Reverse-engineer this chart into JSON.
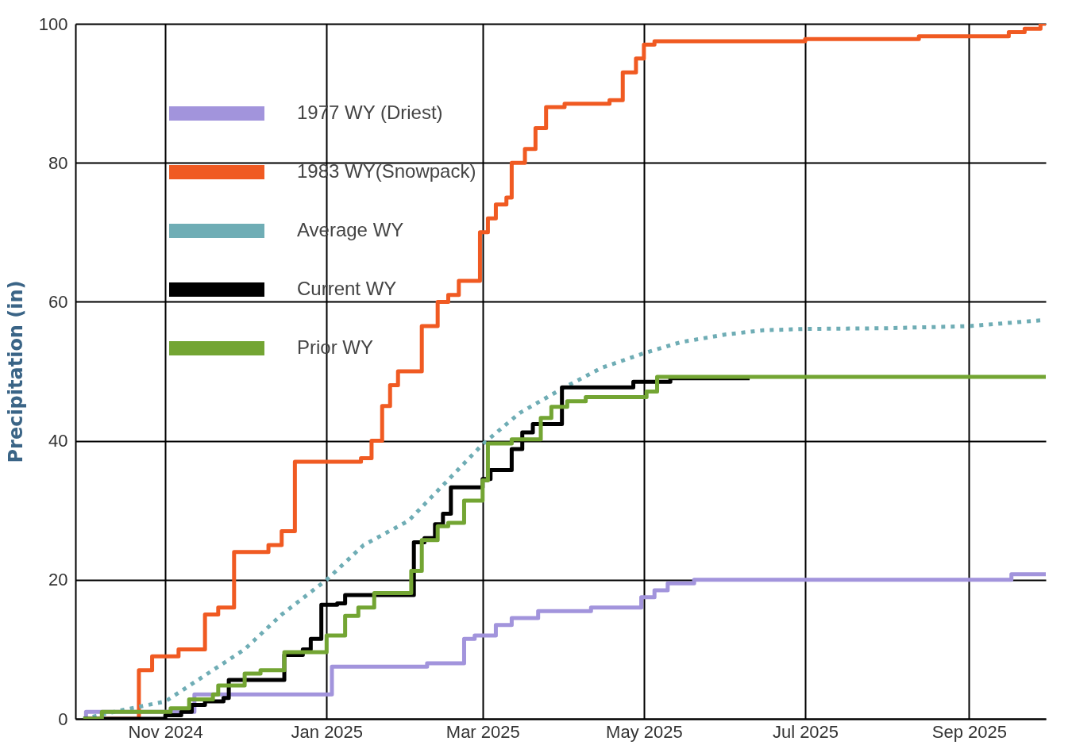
{
  "chart_data": {
    "type": "step",
    "ylabel": "Precipitation (in)",
    "xlim": [
      "2024-09-28",
      "2025-09-30"
    ],
    "ylim": [
      0,
      100
    ],
    "yticks": [
      0,
      20,
      40,
      60,
      80,
      100
    ],
    "xticks": [
      {
        "value": "2024-11",
        "label": "Nov 2024"
      },
      {
        "value": "2025-01",
        "label": "Jan 2025"
      },
      {
        "value": "2025-03",
        "label": "Mar 2025"
      },
      {
        "value": "2025-05",
        "label": "May 2025"
      },
      {
        "value": "2025-07",
        "label": "Jul 2025"
      },
      {
        "value": "2025-09",
        "label": "Sep 2025"
      }
    ],
    "grid": true,
    "legend": "top left",
    "series": [
      {
        "name": "1977 WY (Driest)",
        "color": "#a294dc",
        "x": [
          "2024-10-01",
          "2024-10-02",
          "2024-11-12",
          "2025-01-03",
          "2025-02-08",
          "2025-02-22",
          "2025-02-26",
          "2025-03-06",
          "2025-03-12",
          "2025-03-22",
          "2025-04-11",
          "2025-04-30",
          "2025-05-05",
          "2025-05-10",
          "2025-05-20",
          "2025-09-17",
          "2025-09-30"
        ],
        "values": [
          0,
          1,
          3.5,
          7.5,
          8,
          11.5,
          12,
          13.5,
          14.5,
          15.5,
          16,
          17.5,
          18.5,
          19.5,
          20,
          20.8,
          20.8
        ]
      },
      {
        "name": "1983 WY(Snowpack)",
        "color": "#f05a22",
        "x": [
          "2024-10-01",
          "2024-10-22",
          "2024-10-27",
          "2024-11-06",
          "2024-11-16",
          "2024-11-21",
          "2024-11-27",
          "2024-12-10",
          "2024-12-15",
          "2024-12-20",
          "2025-01-14",
          "2025-01-18",
          "2025-01-22",
          "2025-01-25",
          "2025-01-28",
          "2025-02-06",
          "2025-02-12",
          "2025-02-16",
          "2025-02-20",
          "2025-02-28",
          "2025-03-03",
          "2025-03-06",
          "2025-03-10",
          "2025-03-12",
          "2025-03-17",
          "2025-03-21",
          "2025-03-25",
          "2025-04-01",
          "2025-04-18",
          "2025-04-23",
          "2025-04-28",
          "2025-05-01",
          "2025-05-05",
          "2025-07-01",
          "2025-08-13",
          "2025-09-16",
          "2025-09-22",
          "2025-09-28",
          "2025-09-30"
        ],
        "values": [
          0,
          7,
          9,
          10,
          15,
          16,
          24,
          25,
          27,
          37,
          37.5,
          40,
          45,
          48,
          50,
          56.5,
          60,
          61,
          63,
          70,
          72,
          74,
          75,
          80,
          82,
          85,
          88,
          88.5,
          89,
          93,
          95,
          97,
          97.5,
          97.8,
          98.2,
          98.8,
          99.3,
          100,
          100
        ]
      },
      {
        "name": "Average WY",
        "color": "#6fadb5",
        "type": "line",
        "line_style": "dotted",
        "x": [
          "2024-10-01",
          "2024-10-15",
          "2024-11-01",
          "2024-11-15",
          "2024-12-01",
          "2024-12-15",
          "2025-01-01",
          "2025-01-15",
          "2025-02-01",
          "2025-02-15",
          "2025-03-01",
          "2025-03-15",
          "2025-04-01",
          "2025-04-15",
          "2025-05-01",
          "2025-05-15",
          "2025-06-01",
          "2025-06-15",
          "2025-07-01",
          "2025-08-01",
          "2025-09-01",
          "2025-09-30"
        ],
        "values": [
          0,
          1.2,
          2.5,
          6,
          10,
          15,
          20,
          25,
          28.5,
          34,
          39.5,
          44,
          47.7,
          50.5,
          52.6,
          54.2,
          55.3,
          55.9,
          56.1,
          56.2,
          56.5,
          57.4
        ]
      },
      {
        "name": "Current WY",
        "color": "#000000",
        "x": [
          "2024-10-01",
          "2024-11-01",
          "2024-11-07",
          "2024-11-11",
          "2024-11-16",
          "2024-11-23",
          "2024-11-25",
          "2024-12-16",
          "2024-12-23",
          "2024-12-26",
          "2024-12-30",
          "2025-01-05",
          "2025-01-08",
          "2025-02-03",
          "2025-02-07",
          "2025-02-11",
          "2025-02-14",
          "2025-02-17",
          "2025-03-01",
          "2025-03-04",
          "2025-03-12",
          "2025-03-16",
          "2025-03-20",
          "2025-03-31",
          "2025-04-27",
          "2025-05-11",
          "2025-06-10"
        ],
        "values": [
          0,
          0.5,
          1,
          2,
          2.5,
          3,
          5.6,
          9.2,
          10,
          11.5,
          16.4,
          16.6,
          17.8,
          25.4,
          26,
          28,
          29.5,
          33.3,
          34.5,
          35.8,
          38.8,
          41.2,
          42.4,
          47.7,
          48.5,
          49,
          49
        ]
      },
      {
        "name": "Prior WY",
        "color": "#73a533",
        "x": [
          "2024-10-01",
          "2024-10-08",
          "2024-11-03",
          "2024-11-10",
          "2024-11-19",
          "2024-11-21",
          "2024-12-01",
          "2024-12-07",
          "2024-12-16",
          "2025-01-01",
          "2025-01-08",
          "2025-01-13",
          "2025-01-19",
          "2025-02-02",
          "2025-02-06",
          "2025-02-12",
          "2025-02-16",
          "2025-02-22",
          "2025-03-01",
          "2025-03-03",
          "2025-03-12",
          "2025-03-23",
          "2025-03-27",
          "2025-04-02",
          "2025-04-09",
          "2025-05-02",
          "2025-05-06",
          "2025-09-30"
        ],
        "values": [
          0,
          1,
          1.5,
          2.8,
          3.5,
          4.8,
          6.5,
          7,
          9.6,
          12,
          14.8,
          16,
          18.1,
          21.3,
          25.7,
          27.7,
          28.2,
          31.4,
          34.3,
          39.6,
          40.2,
          43.3,
          44.9,
          45.7,
          46.3,
          47.1,
          49.2,
          49.2
        ]
      }
    ]
  }
}
